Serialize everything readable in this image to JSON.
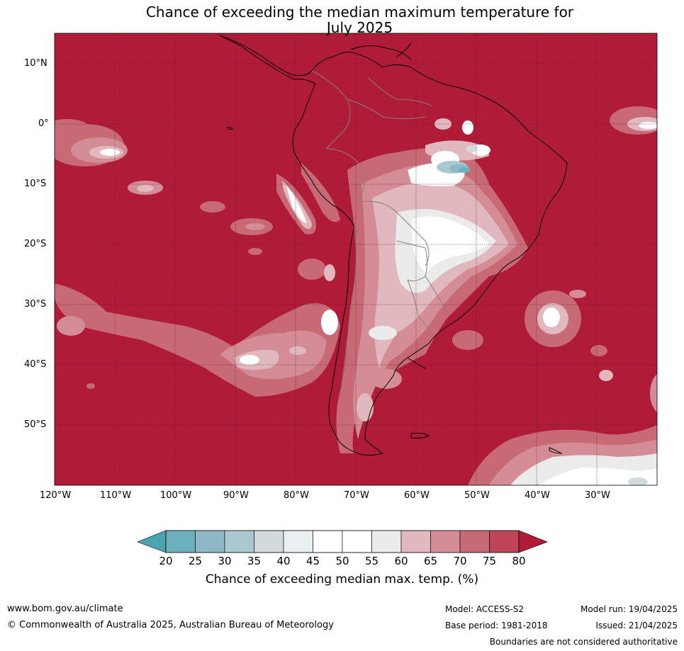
{
  "title_line1": "Chance of exceeding the median maximum temperature for",
  "title_line2": "July 2025",
  "lat_labels": [
    "10°N",
    "0°",
    "10°S",
    "20°S",
    "30°S",
    "40°S",
    "50°S"
  ],
  "lon_labels": [
    "120°W",
    "110°W",
    "100°W",
    "90°W",
    "80°W",
    "70°W",
    "60°W",
    "50°W",
    "40°W",
    "30°W"
  ],
  "colorbar": {
    "ticks": [
      "20",
      "25",
      "30",
      "35",
      "40",
      "45",
      "50",
      "55",
      "60",
      "65",
      "70",
      "75",
      "80"
    ],
    "colors": [
      "#4da3b0",
      "#6db0bd",
      "#8fb8c6",
      "#aac8cf",
      "#d3dadd",
      "#eaf0f2",
      "#ffffff",
      "#ffffff",
      "#ecebec",
      "#e0b8be",
      "#d48d97",
      "#c86a76",
      "#bf4556",
      "#b01c38"
    ],
    "label": "Chance of exceeding median max. temp. (%)"
  },
  "map_colors": {
    "ocean_dominant": "#b01c38",
    "land_border": "#000000",
    "country_border": "#808080"
  },
  "footer": {
    "website": "www.bom.gov.au/climate",
    "copyright": "© Commonwealth of Australia 2025, Australian Bureau of Meteorology",
    "model": "Model: ACCESS-S2",
    "base_period": "Base period: 1981-2018",
    "model_run": "Model run: 19/04/2025",
    "issued": "Issued: 21/04/2025",
    "disclaimer": "Boundaries are not considered authoritative"
  }
}
